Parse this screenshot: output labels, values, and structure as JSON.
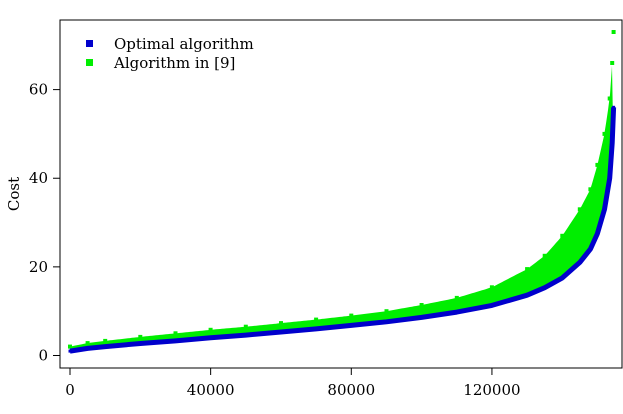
{
  "chart_data": {
    "type": "scatter",
    "title": "",
    "xlabel": "",
    "ylabel": "Cost",
    "xlim": [
      0,
      155000
    ],
    "ylim": [
      0,
      73
    ],
    "x_ticks": [
      0,
      40000,
      80000,
      120000
    ],
    "y_ticks": [
      0,
      20,
      40,
      60
    ],
    "legend_position": "top-left",
    "grid": false,
    "series": [
      {
        "name": "Algorithm in [9]",
        "color": "#00ee00",
        "x": [
          0,
          5000,
          10000,
          20000,
          30000,
          40000,
          50000,
          60000,
          70000,
          80000,
          90000,
          100000,
          110000,
          120000,
          130000,
          135000,
          140000,
          145000,
          148000,
          150000,
          152000,
          153500,
          154200,
          154600
        ],
        "y": [
          2.0,
          2.8,
          3.3,
          4.2,
          5.0,
          5.8,
          6.5,
          7.3,
          8.1,
          9.0,
          10.0,
          11.4,
          13.0,
          15.4,
          19.5,
          22.5,
          27.0,
          33.0,
          37.5,
          43.0,
          50.0,
          58.0,
          66.0,
          73.0
        ]
      },
      {
        "name": "Optimal algorithm",
        "color": "#0000cc",
        "x": [
          0,
          5000,
          10000,
          20000,
          30000,
          40000,
          50000,
          60000,
          70000,
          80000,
          90000,
          100000,
          110000,
          120000,
          130000,
          135000,
          140000,
          145000,
          148000,
          150000,
          152000,
          153500,
          154200,
          154600
        ],
        "y": [
          1.0,
          1.6,
          2.0,
          2.7,
          3.3,
          4.0,
          4.6,
          5.3,
          6.0,
          6.8,
          7.6,
          8.6,
          9.8,
          11.3,
          13.6,
          15.3,
          17.5,
          21.0,
          24.0,
          27.5,
          33.0,
          40.0,
          48.0,
          56.0
        ]
      }
    ]
  }
}
